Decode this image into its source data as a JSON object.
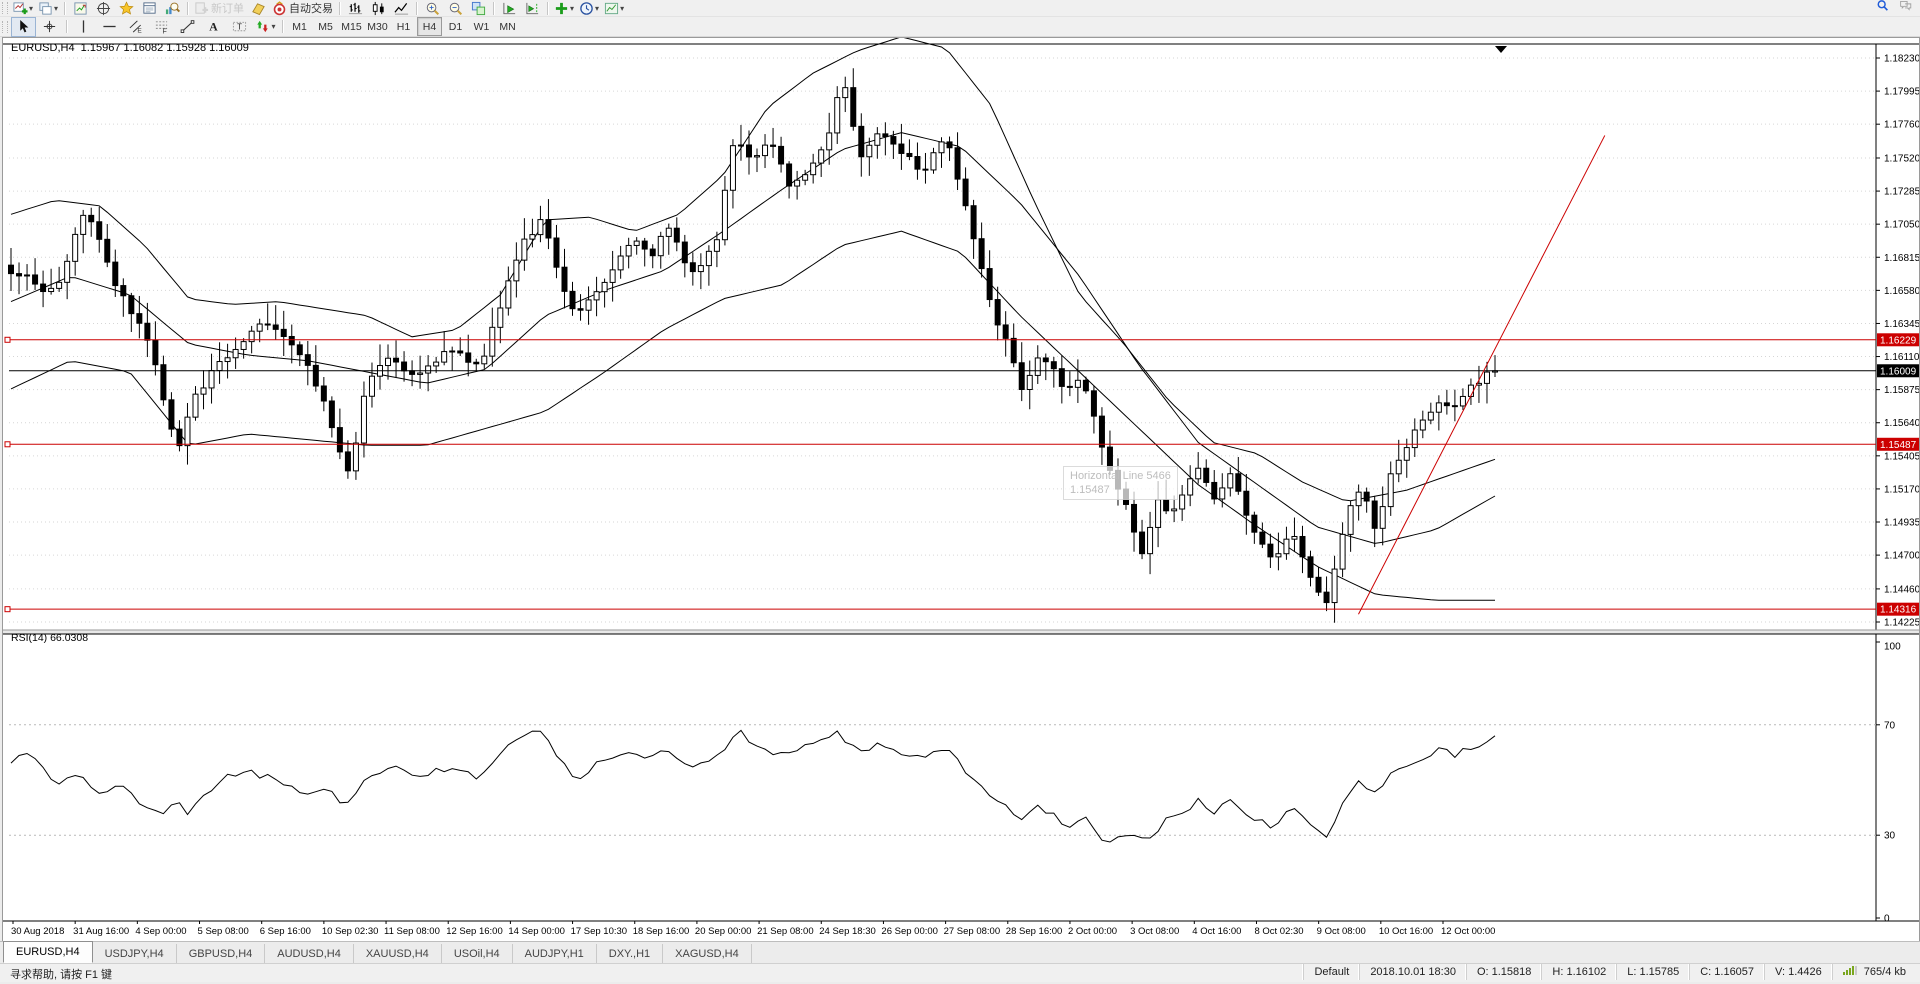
{
  "toolbar": {
    "standard": [
      {
        "name": "new-chart",
        "icon": "newchart",
        "dropdown": true
      },
      {
        "name": "chart-profiles",
        "icon": "profiles",
        "dropdown": true
      },
      {
        "sep": true
      },
      {
        "name": "market-watch",
        "icon": "marketwatch"
      },
      {
        "name": "data-window",
        "icon": "datawindow"
      },
      {
        "name": "navigator",
        "icon": "navigator"
      },
      {
        "name": "terminal",
        "icon": "terminal"
      },
      {
        "name": "strategy-tester",
        "icon": "tester"
      },
      {
        "sep": true
      },
      {
        "name": "new-order",
        "icon": "neworder",
        "label": "新订单",
        "disabled": true
      },
      {
        "name": "metaeditor",
        "icon": "metaeditor"
      },
      {
        "name": "autotrading",
        "icon": "autotrading",
        "label": "自动交易"
      },
      {
        "sep": true
      },
      {
        "name": "bar-chart-mode",
        "icon": "bars"
      },
      {
        "name": "candlestick-mode",
        "icon": "candles"
      },
      {
        "name": "line-chart-mode",
        "icon": "linechart"
      },
      {
        "sep": true
      },
      {
        "name": "zoom-in",
        "icon": "zoomin"
      },
      {
        "name": "zoom-out",
        "icon": "zoomout"
      },
      {
        "name": "tile-windows",
        "icon": "tile"
      },
      {
        "sep": true
      },
      {
        "name": "auto-scroll",
        "icon": "autoscroll"
      },
      {
        "name": "chart-shift",
        "icon": "chartshift"
      },
      {
        "sep": true
      },
      {
        "name": "indicators-list",
        "icon": "indicators",
        "dropdown": true
      },
      {
        "name": "periods",
        "icon": "clock",
        "dropdown": true
      },
      {
        "name": "templates",
        "icon": "template",
        "dropdown": true
      }
    ],
    "line_studies": [
      {
        "name": "cursor",
        "icon": "cursor",
        "active": true
      },
      {
        "name": "crosshair",
        "icon": "crosshair"
      },
      {
        "sep": true
      },
      {
        "name": "vertical-line",
        "icon": "vline"
      },
      {
        "name": "horizontal-line",
        "icon": "hline"
      },
      {
        "name": "equidistant-channel",
        "icon": "channel"
      },
      {
        "name": "fibonacci-retracement",
        "icon": "fibo"
      },
      {
        "name": "trendline",
        "icon": "trend"
      },
      {
        "name": "text",
        "icon": "textA"
      },
      {
        "name": "text-label",
        "icon": "textlabel"
      },
      {
        "name": "arrows",
        "icon": "arrowstool",
        "dropdown": true
      },
      {
        "sep": true
      }
    ],
    "timeframes": [
      {
        "label": "M1"
      },
      {
        "label": "M5"
      },
      {
        "label": "M15"
      },
      {
        "label": "M30"
      },
      {
        "label": "H1"
      },
      {
        "label": "H4",
        "active": true
      },
      {
        "label": "D1"
      },
      {
        "label": "W1"
      },
      {
        "label": "MN"
      }
    ],
    "top_right_icons": [
      "search-icon",
      "chat-icon"
    ]
  },
  "chart": {
    "title": "EURUSD,H4  1.15967 1.16082 1.15928 1.16009",
    "rsi_label": "RSI(14) 66.0308",
    "tooltip": {
      "line1": "Horizontal Line 5466",
      "line2": "1.15487"
    }
  },
  "chart_data": {
    "type": "candlestick",
    "symbol": "EURUSD",
    "timeframe": "H4",
    "title": "EURUSD,H4",
    "current_ohlc": {
      "open": 1.15967,
      "high": 1.16082,
      "low": 1.15928,
      "close": 1.16009
    },
    "current_price": 1.16009,
    "price_axis": {
      "min": 1.14225,
      "max": 1.1823,
      "ticks": [
        "1.18230",
        "1.17995",
        "1.17760",
        "1.17520",
        "1.17285",
        "1.17050",
        "1.16815",
        "1.16580",
        "1.16345",
        "1.16110",
        "1.15875",
        "1.15640",
        "1.15405",
        "1.15170",
        "1.14935",
        "1.14700",
        "1.14460",
        "1.14225"
      ]
    },
    "levels": [
      {
        "label": "1.16229",
        "price": 1.16229,
        "color": "#cc0000"
      },
      {
        "label": "1.15487",
        "price": 1.15487,
        "color": "#cc0000"
      },
      {
        "label": "1.14316",
        "price": 1.14316,
        "color": "#cc0000"
      }
    ],
    "trendline": {
      "color": "#cc0000",
      "f1": 0.908,
      "price1": 1.1428,
      "f2": 1.074,
      "price2": 1.1768
    },
    "bar_count": 186,
    "price_anchors": [
      [
        0.0,
        1.1668
      ],
      [
        0.01,
        1.1672
      ],
      [
        0.02,
        1.1655
      ],
      [
        0.035,
        1.1668
      ],
      [
        0.05,
        1.1718
      ],
      [
        0.06,
        1.169
      ],
      [
        0.07,
        1.1662
      ],
      [
        0.085,
        1.1635
      ],
      [
        0.095,
        1.1615
      ],
      [
        0.105,
        1.157
      ],
      [
        0.112,
        1.1545
      ],
      [
        0.125,
        1.1585
      ],
      [
        0.14,
        1.1605
      ],
      [
        0.155,
        1.162
      ],
      [
        0.17,
        1.1638
      ],
      [
        0.185,
        1.1625
      ],
      [
        0.2,
        1.1605
      ],
      [
        0.212,
        1.1575
      ],
      [
        0.222,
        1.1542
      ],
      [
        0.228,
        1.1528
      ],
      [
        0.24,
        1.1592
      ],
      [
        0.255,
        1.161
      ],
      [
        0.27,
        1.1598
      ],
      [
        0.285,
        1.1608
      ],
      [
        0.3,
        1.1618
      ],
      [
        0.315,
        1.1602
      ],
      [
        0.33,
        1.1648
      ],
      [
        0.345,
        1.1692
      ],
      [
        0.358,
        1.1708
      ],
      [
        0.368,
        1.1672
      ],
      [
        0.38,
        1.1638
      ],
      [
        0.392,
        1.1652
      ],
      [
        0.408,
        1.1678
      ],
      [
        0.42,
        1.1695
      ],
      [
        0.432,
        1.1682
      ],
      [
        0.442,
        1.1705
      ],
      [
        0.452,
        1.1682
      ],
      [
        0.462,
        1.1668
      ],
      [
        0.475,
        1.1692
      ],
      [
        0.488,
        1.1768
      ],
      [
        0.5,
        1.1748
      ],
      [
        0.512,
        1.1765
      ],
      [
        0.525,
        1.1732
      ],
      [
        0.54,
        1.1748
      ],
      [
        0.552,
        1.1772
      ],
      [
        0.56,
        1.1812
      ],
      [
        0.572,
        1.1752
      ],
      [
        0.585,
        1.1772
      ],
      [
        0.6,
        1.1755
      ],
      [
        0.615,
        1.1742
      ],
      [
        0.63,
        1.1768
      ],
      [
        0.642,
        1.1722
      ],
      [
        0.652,
        1.1682
      ],
      [
        0.662,
        1.1638
      ],
      [
        0.672,
        1.1622
      ],
      [
        0.682,
        1.1585
      ],
      [
        0.692,
        1.1608
      ],
      [
        0.702,
        1.1602
      ],
      [
        0.712,
        1.1585
      ],
      [
        0.722,
        1.1595
      ],
      [
        0.732,
        1.1558
      ],
      [
        0.742,
        1.1528
      ],
      [
        0.752,
        1.1502
      ],
      [
        0.762,
        1.1472
      ],
      [
        0.772,
        1.1508
      ],
      [
        0.782,
        1.1498
      ],
      [
        0.792,
        1.1518
      ],
      [
        0.802,
        1.1532
      ],
      [
        0.812,
        1.1508
      ],
      [
        0.822,
        1.1528
      ],
      [
        0.832,
        1.1502
      ],
      [
        0.842,
        1.1478
      ],
      [
        0.852,
        1.1468
      ],
      [
        0.862,
        1.1488
      ],
      [
        0.875,
        1.1458
      ],
      [
        0.886,
        1.1432
      ],
      [
        0.9,
        1.1498
      ],
      [
        0.91,
        1.1518
      ],
      [
        0.92,
        1.1488
      ],
      [
        0.93,
        1.1528
      ],
      [
        0.94,
        1.1548
      ],
      [
        0.952,
        1.1565
      ],
      [
        0.962,
        1.158
      ],
      [
        0.972,
        1.1572
      ],
      [
        0.985,
        1.1592
      ],
      [
        1.0,
        1.16009
      ]
    ],
    "bands": {
      "upper": [
        [
          0,
          1.1712
        ],
        [
          0.03,
          1.1722
        ],
        [
          0.06,
          1.1718
        ],
        [
          0.09,
          1.169
        ],
        [
          0.12,
          1.1652
        ],
        [
          0.15,
          1.1648
        ],
        [
          0.18,
          1.165
        ],
        [
          0.21,
          1.1645
        ],
        [
          0.24,
          1.164
        ],
        [
          0.27,
          1.1625
        ],
        [
          0.3,
          1.163
        ],
        [
          0.33,
          1.1655
        ],
        [
          0.36,
          1.1708
        ],
        [
          0.39,
          1.171
        ],
        [
          0.42,
          1.17
        ],
        [
          0.45,
          1.1712
        ],
        [
          0.48,
          1.174
        ],
        [
          0.51,
          1.1788
        ],
        [
          0.54,
          1.1812
        ],
        [
          0.57,
          1.1828
        ],
        [
          0.6,
          1.1838
        ],
        [
          0.63,
          1.183
        ],
        [
          0.66,
          1.179
        ],
        [
          0.69,
          1.172
        ],
        [
          0.72,
          1.1655
        ],
        [
          0.75,
          1.162
        ],
        [
          0.78,
          1.158
        ],
        [
          0.81,
          1.155
        ],
        [
          0.84,
          1.1542
        ],
        [
          0.87,
          1.1522
        ],
        [
          0.9,
          1.1508
        ],
        [
          0.94,
          1.1516
        ],
        [
          1.0,
          1.1538
        ]
      ],
      "middle": [
        [
          0,
          1.165
        ],
        [
          0.04,
          1.1668
        ],
        [
          0.08,
          1.1655
        ],
        [
          0.12,
          1.162
        ],
        [
          0.16,
          1.1612
        ],
        [
          0.2,
          1.1608
        ],
        [
          0.24,
          1.16
        ],
        [
          0.28,
          1.1592
        ],
        [
          0.32,
          1.1602
        ],
        [
          0.36,
          1.164
        ],
        [
          0.4,
          1.1658
        ],
        [
          0.44,
          1.1672
        ],
        [
          0.48,
          1.17
        ],
        [
          0.52,
          1.173
        ],
        [
          0.56,
          1.1758
        ],
        [
          0.6,
          1.177
        ],
        [
          0.64,
          1.176
        ],
        [
          0.68,
          1.172
        ],
        [
          0.72,
          1.1668
        ],
        [
          0.76,
          1.1605
        ],
        [
          0.8,
          1.155
        ],
        [
          0.84,
          1.152
        ],
        [
          0.88,
          1.149
        ],
        [
          0.92,
          1.1478
        ],
        [
          0.96,
          1.1488
        ],
        [
          1.0,
          1.1512
        ]
      ],
      "lower": [
        [
          0,
          1.1588
        ],
        [
          0.04,
          1.1608
        ],
        [
          0.08,
          1.16
        ],
        [
          0.12,
          1.1548
        ],
        [
          0.16,
          1.1556
        ],
        [
          0.2,
          1.1552
        ],
        [
          0.24,
          1.1548
        ],
        [
          0.28,
          1.1548
        ],
        [
          0.32,
          1.156
        ],
        [
          0.36,
          1.1572
        ],
        [
          0.4,
          1.16
        ],
        [
          0.44,
          1.163
        ],
        [
          0.48,
          1.1652
        ],
        [
          0.52,
          1.1662
        ],
        [
          0.56,
          1.169
        ],
        [
          0.6,
          1.17
        ],
        [
          0.64,
          1.1685
        ],
        [
          0.68,
          1.164
        ],
        [
          0.72,
          1.16
        ],
        [
          0.76,
          1.156
        ],
        [
          0.8,
          1.152
        ],
        [
          0.84,
          1.149
        ],
        [
          0.88,
          1.1462
        ],
        [
          0.92,
          1.1442
        ],
        [
          0.96,
          1.1438
        ],
        [
          1.0,
          1.1438
        ]
      ]
    },
    "rsi": {
      "name": "RSI(14)",
      "value": 66.0308,
      "axis_labels": [
        "100",
        "70",
        "30",
        "0"
      ],
      "guide_levels": [
        70,
        30
      ],
      "anchors": [
        [
          0.0,
          57
        ],
        [
          0.012,
          60
        ],
        [
          0.03,
          48
        ],
        [
          0.045,
          52
        ],
        [
          0.06,
          45
        ],
        [
          0.075,
          48
        ],
        [
          0.09,
          40
        ],
        [
          0.1,
          37
        ],
        [
          0.11,
          42
        ],
        [
          0.12,
          38
        ],
        [
          0.14,
          50
        ],
        [
          0.16,
          53
        ],
        [
          0.18,
          50
        ],
        [
          0.2,
          45
        ],
        [
          0.213,
          48
        ],
        [
          0.225,
          40
        ],
        [
          0.24,
          52
        ],
        [
          0.26,
          55
        ],
        [
          0.272,
          50
        ],
        [
          0.285,
          53
        ],
        [
          0.3,
          55
        ],
        [
          0.315,
          51
        ],
        [
          0.33,
          60
        ],
        [
          0.347,
          66
        ],
        [
          0.358,
          68
        ],
        [
          0.37,
          57
        ],
        [
          0.38,
          50
        ],
        [
          0.392,
          55
        ],
        [
          0.41,
          60
        ],
        [
          0.425,
          58
        ],
        [
          0.44,
          62
        ],
        [
          0.452,
          56
        ],
        [
          0.465,
          55
        ],
        [
          0.478,
          60
        ],
        [
          0.49,
          68
        ],
        [
          0.502,
          62
        ],
        [
          0.52,
          59
        ],
        [
          0.54,
          63
        ],
        [
          0.557,
          67
        ],
        [
          0.572,
          60
        ],
        [
          0.588,
          63
        ],
        [
          0.6,
          60
        ],
        [
          0.618,
          58
        ],
        [
          0.63,
          62
        ],
        [
          0.642,
          54
        ],
        [
          0.655,
          47
        ],
        [
          0.668,
          42
        ],
        [
          0.68,
          35
        ],
        [
          0.69,
          40
        ],
        [
          0.702,
          38
        ],
        [
          0.712,
          33
        ],
        [
          0.722,
          37
        ],
        [
          0.732,
          30
        ],
        [
          0.742,
          27
        ],
        [
          0.754,
          32
        ],
        [
          0.765,
          27
        ],
        [
          0.778,
          35
        ],
        [
          0.79,
          38
        ],
        [
          0.8,
          43
        ],
        [
          0.812,
          38
        ],
        [
          0.822,
          43
        ],
        [
          0.832,
          38
        ],
        [
          0.843,
          35
        ],
        [
          0.852,
          33
        ],
        [
          0.862,
          40
        ],
        [
          0.872,
          35
        ],
        [
          0.886,
          29
        ],
        [
          0.9,
          45
        ],
        [
          0.91,
          50
        ],
        [
          0.92,
          44
        ],
        [
          0.93,
          52
        ],
        [
          0.94,
          56
        ],
        [
          0.952,
          58
        ],
        [
          0.962,
          61
        ],
        [
          0.972,
          59
        ],
        [
          0.985,
          62
        ],
        [
          1.0,
          66.03
        ]
      ]
    },
    "time_axis": [
      "30 Aug 2018",
      "31 Aug 16:00",
      "4 Sep 00:00",
      "5 Sep 08:00",
      "6 Sep 16:00",
      "10 Sep 02:30",
      "11 Sep 08:00",
      "12 Sep 16:00",
      "14 Sep 00:00",
      "17 Sep 10:30",
      "18 Sep 16:00",
      "20 Sep 00:00",
      "21 Sep 08:00",
      "24 Sep 18:30",
      "26 Sep 00:00",
      "27 Sep 08:00",
      "28 Sep 16:00",
      "2 Oct 00:00",
      "3 Oct 08:00",
      "4 Oct 16:00",
      "8 Oct 02:30",
      "9 Oct 08:00",
      "10 Oct 16:00",
      "12 Oct 00:00"
    ],
    "colors": {
      "up_candle": "#ffffff",
      "down_candle": "#000000",
      "bands": "#000000",
      "level": "#cc0000",
      "current_price_label_bg": "#000000",
      "level_label_bg": "#cc0000",
      "grid": "#d6d6d6"
    }
  },
  "tabs": [
    {
      "label": "EURUSD,H4",
      "active": true
    },
    {
      "label": "USDJPY,H4"
    },
    {
      "label": "GBPUSD,H4"
    },
    {
      "label": "AUDUSD,H4"
    },
    {
      "label": "XAUUSD,H4"
    },
    {
      "label": "USOil,H4"
    },
    {
      "label": "AUDJPY,H1"
    },
    {
      "label": "DXY.,H1"
    },
    {
      "label": "XAGUSD,H4"
    }
  ],
  "status_bar": {
    "help": "寻求帮助, 请按 F1 键",
    "profile": "Default",
    "bar_time": "2018.10.01 18:30",
    "o": "O: 1.15818",
    "h": "H: 1.16102",
    "l": "L: 1.15785",
    "c": "C: 1.16057",
    "v": "V: 1.4426",
    "net": "765/4 kb"
  }
}
